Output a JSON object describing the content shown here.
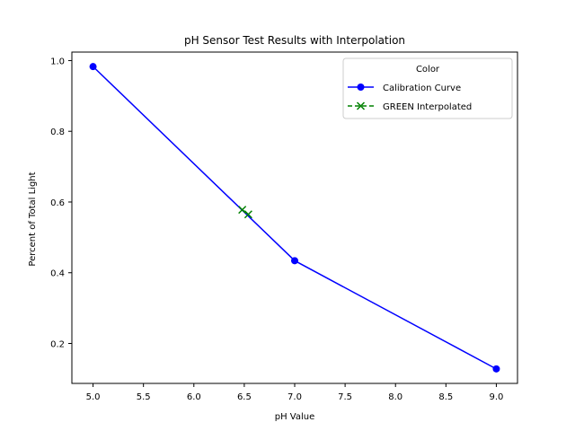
{
  "chart_data": {
    "type": "line",
    "title": "pH Sensor Test Results with Interpolation",
    "xlabel": "pH Value",
    "ylabel": "Percent of Total Light",
    "xlim": [
      4.79,
      9.21
    ],
    "ylim": [
      0.087,
      1.024
    ],
    "x_ticks": [
      "5.0",
      "5.5",
      "6.0",
      "6.5",
      "7.0",
      "7.5",
      "8.0",
      "8.5",
      "9.0"
    ],
    "y_ticks": [
      "0.2",
      "0.4",
      "0.6",
      "0.8",
      "1.0"
    ],
    "grid": false,
    "legend": {
      "title": "Color",
      "placement": "top-right"
    },
    "series": [
      {
        "name": "Calibration Curve",
        "style": "solid line with circle markers",
        "color": "#0000ff",
        "x": [
          5.0,
          7.0,
          9.0
        ],
        "y": [
          0.983,
          0.434,
          0.128
        ]
      },
      {
        "name": "GREEN Interpolated",
        "style": "dashed line with x markers",
        "color": "#008000",
        "x": [
          6.48,
          6.54
        ],
        "y": [
          0.578,
          0.565
        ]
      }
    ]
  }
}
